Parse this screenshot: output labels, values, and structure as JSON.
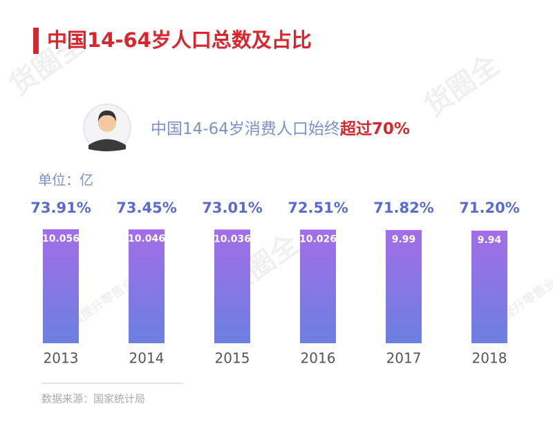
{
  "chart_data": {
    "type": "bar",
    "title": "中国14-64岁人口总数及占比",
    "subtitle": "中国14-64岁消费人口始终",
    "subtitle_highlight": "超过70%",
    "unit": "单位：亿",
    "source": "数据来源：国家统计局",
    "watermark": [
      "货圈全",
      "持续提升零售业效率"
    ],
    "categories": [
      "2013",
      "2014",
      "2015",
      "2016",
      "2017",
      "2018"
    ],
    "values": [
      10.056,
      10.046,
      10.036,
      10.026,
      9.99,
      9.94
    ],
    "shares": [
      73.91,
      73.45,
      73.01,
      72.51,
      71.82,
      71.2
    ],
    "share_labels": [
      "73.91%",
      "73.45%",
      "73.01%",
      "72.51%",
      "71.82%",
      "71.20%"
    ],
    "color": [
      "#a36ee8",
      "#6b7fe0"
    ]
  }
}
